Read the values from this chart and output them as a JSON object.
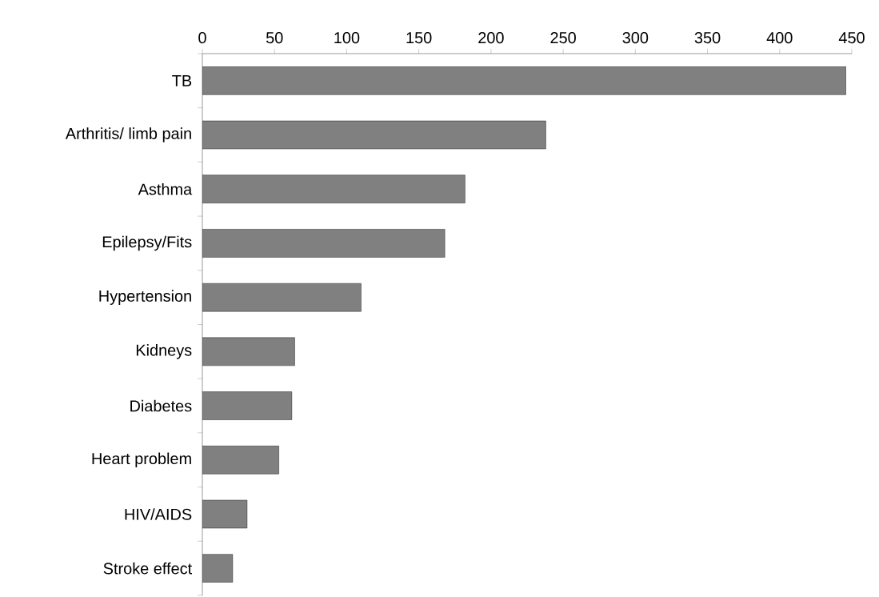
{
  "chart_data": {
    "type": "bar",
    "orientation": "horizontal",
    "categories": [
      "TB",
      "Arthritis/ limb pain",
      "Asthma",
      "Epilepsy/Fits",
      "Hypertension",
      "Kidneys",
      "Diabetes",
      "Heart problem",
      "HIV/AIDS",
      "Stroke effect"
    ],
    "values": [
      446,
      238,
      182,
      168,
      110,
      64,
      62,
      53,
      31,
      21
    ],
    "color": "#808080",
    "xlim": [
      0,
      450
    ],
    "xticks": [
      0,
      50,
      100,
      150,
      200,
      250,
      300,
      350,
      400,
      450
    ]
  }
}
